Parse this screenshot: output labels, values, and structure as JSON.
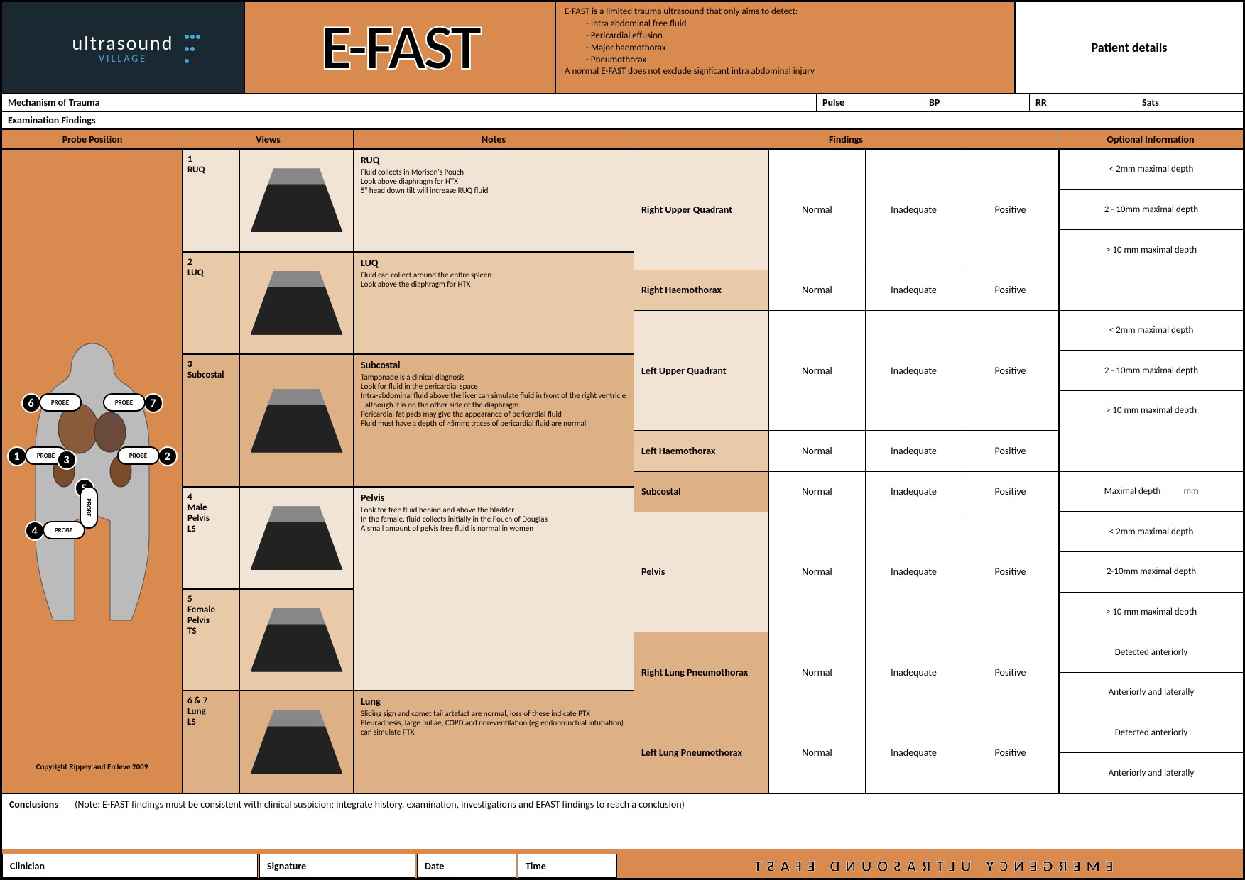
{
  "logo": {
    "main": "ultrasound",
    "sub": "VILLAGE"
  },
  "title": "E-FAST",
  "description": {
    "intro": "E-FAST is a limited trauma ultrasound that only aims to detect:",
    "items": [
      "Intra abdominal free fluid",
      "Pericardial effusion",
      "Major haemothorax",
      "Pneumothorax"
    ],
    "footer": "A normal E-FAST does not exclude signficant intra abdominal injury"
  },
  "patient": "Patient details",
  "vitals": {
    "mech": "Mechanism of Trauma",
    "pulse": "Pulse",
    "bp": "BP",
    "rr": "RR",
    "sats": "Sats"
  },
  "exam_findings": "Examination Findings",
  "col_headers": {
    "probe": "Probe Position",
    "views": "Views",
    "notes": "Notes",
    "findings": "Findings",
    "optional": "Optional Information"
  },
  "copyright": "Copyright Rippey and Ercleve 2009",
  "views": [
    {
      "num": "1",
      "name": "RUQ",
      "ntitle": "RUQ",
      "notes": "Fluid collects in Morison's Pouch\nLook above diaphragm for HTX\n5° head down tilt will increase RUQ fluid",
      "bg": "bg-a"
    },
    {
      "num": "2",
      "name": "LUQ",
      "ntitle": "LUQ",
      "notes": "Fluid can collect around the entire spleen\nLook above the diaphragm for HTX",
      "bg": "bg-b"
    },
    {
      "num": "3",
      "name": "Subcostal",
      "ntitle": "Subcostal",
      "notes": "Tamponade is a clinical diagnosis\nLook for fluid in the pericardial space\nIntra-abdominal fluid above the liver can simulate fluid in front of the right ventricle - although it is on the other side of the diaphragm\nPericardial fat pads may give the appearance of pericardial fluid\nFluid must have a depth of >5mm; traces of pericardial fluid are normal",
      "bg": "bg-c"
    },
    {
      "num": "4",
      "name": "Male\nPelvis\nLS",
      "ntitle": "Pelvis",
      "notes": "Look for free fluid behind and above the bladder\nIn the female, fluid collects initially in the Pouch of Douglas\nA small amount of pelvis free fluid is normal in women",
      "bg": "bg-a",
      "merge": true
    },
    {
      "num": "5",
      "name": "Female\nPelvis\nTS",
      "ntitle": "",
      "notes": "",
      "bg": "bg-b"
    },
    {
      "num": "6 & 7",
      "name": "Lung\nLS",
      "ntitle": "Lung",
      "notes": "Sliding sign and comet tail artefact are normal, loss of these indicate PTX\nPleuradhesis, large bullae, COPD and non-ventilation (eg endobronchial intubation) can simulate PTX",
      "bg": "bg-c"
    }
  ],
  "findings": [
    {
      "label": "Right Upper Quadrant",
      "bg": "bg-a",
      "opts": [
        "< 2mm maximal depth",
        "2 - 10mm maximal depth",
        "> 10 mm maximal depth"
      ]
    },
    {
      "label": "Right Haemothorax",
      "bg": "bg-b",
      "opts": [
        ""
      ]
    },
    {
      "label": "Left Upper Quadrant",
      "bg": "bg-a",
      "opts": [
        "< 2mm maximal depth",
        "2 - 10mm maximal depth",
        "> 10 mm maximal depth"
      ]
    },
    {
      "label": "Left Haemothorax",
      "bg": "bg-b",
      "opts": [
        ""
      ]
    },
    {
      "label": "Subcostal",
      "bg": "bg-c",
      "opts": [
        "Maximal depth_____mm"
      ]
    },
    {
      "label": "Pelvis",
      "bg": "bg-a",
      "opts": [
        "< 2mm maximal depth",
        "2-10mm maximal depth",
        "> 10 mm maximal depth"
      ]
    },
    {
      "label": "Right Lung Pneumothorax",
      "bg": "bg-c",
      "opts": [
        "Detected anteriorly",
        "Anteriorly and laterally"
      ]
    },
    {
      "label": "Left Lung Pneumothorax",
      "bg": "bg-c",
      "opts": [
        "Detected anteriorly",
        "Anteriorly and laterally"
      ]
    }
  ],
  "find_opts": [
    "Normal",
    "Inadequate",
    "Positive"
  ],
  "conclusions": {
    "label": "Conclusions",
    "note": "(Note: E-FAST findings must be consistent with clinical suspicion; integrate history, examination, investigations and EFAST findings to reach a conclusion)"
  },
  "sign": {
    "clinician": "Clinician",
    "signature": "Signature",
    "date": "Date",
    "time": "Time"
  },
  "footer_title": "EMERGENCY ULTRASOUND EFAST",
  "probe_label": "PROBE",
  "colors": {
    "orange": "#d88a4f",
    "dark": "#1a2832",
    "tint_a": "#f2e4d4",
    "tint_b": "#e8c9a8",
    "tint_c": "#ddb085"
  }
}
